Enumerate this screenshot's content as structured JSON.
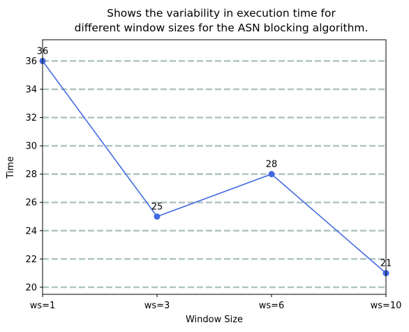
{
  "chart_data": {
    "type": "line",
    "title_lines": [
      "Shows the variability in execution time for",
      "different window sizes for the ASN blocking algorithm."
    ],
    "xlabel": "Window Size",
    "ylabel": "Time",
    "categories": [
      "ws=1",
      "ws=3",
      "ws=6",
      "ws=10"
    ],
    "values": [
      36,
      25,
      28,
      21
    ],
    "data_labels": [
      "36",
      "25",
      "28",
      "21"
    ],
    "ylim": [
      19.5,
      37.5
    ],
    "yticks": [
      20,
      22,
      24,
      26,
      28,
      30,
      32,
      34,
      36
    ],
    "grid": "horizontal dashed",
    "colors": {
      "line": "#4169e1",
      "grid": "#b0c4c4"
    }
  }
}
